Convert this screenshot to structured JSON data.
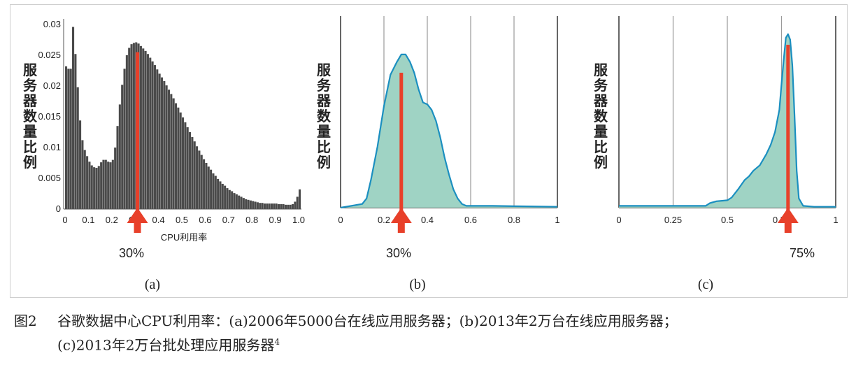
{
  "caption": {
    "figure_number": "图2",
    "line1": "谷歌数据中心CPU利用率：(a)2006年5000台在线应用服务器；(b)2013年2万台在线应用服务器；",
    "line2": "(c)2013年2万台批处理应用服务器",
    "ref": "4"
  },
  "colors": {
    "bar": "#4a4a4a",
    "fill": "#9fd3c4",
    "line": "#1b8fc0",
    "arrow": "#e8402a"
  },
  "chart_data": [
    {
      "type": "bar",
      "panel_label": "(a)",
      "ylabel": "服务器数量比例",
      "xlabel": "CPU利用率",
      "annotation": "30%",
      "arrow_at": 0.31,
      "xlim": [
        0,
        1.0
      ],
      "ylim": [
        0,
        0.03
      ],
      "x_ticks": [
        "0",
        "0.1",
        "0.2",
        "0.3",
        "0.4",
        "0.5",
        "0.6",
        "0.7",
        "0.8",
        "0.9",
        "1.0"
      ],
      "y_ticks": [
        "0",
        "0.005",
        "0.01",
        "0.015",
        "0.02",
        "0.025",
        "0.03"
      ],
      "bin_width": 0.01,
      "values": [
        0.0232,
        0.0228,
        0.0228,
        0.0296,
        0.0252,
        0.0198,
        0.0144,
        0.0112,
        0.0096,
        0.0086,
        0.0077,
        0.0071,
        0.0068,
        0.0067,
        0.007,
        0.0076,
        0.008,
        0.008,
        0.0077,
        0.0076,
        0.008,
        0.01,
        0.0135,
        0.017,
        0.0202,
        0.0228,
        0.025,
        0.0262,
        0.0268,
        0.027,
        0.0271,
        0.0269,
        0.0265,
        0.0261,
        0.0257,
        0.0252,
        0.0246,
        0.024,
        0.0234,
        0.0227,
        0.022,
        0.0214,
        0.0208,
        0.0201,
        0.0194,
        0.0187,
        0.018,
        0.0172,
        0.0165,
        0.0157,
        0.0149,
        0.0141,
        0.0133,
        0.0125,
        0.0117,
        0.011,
        0.0102,
        0.0095,
        0.0088,
        0.0081,
        0.0075,
        0.0069,
        0.0064,
        0.0058,
        0.0054,
        0.0049,
        0.0045,
        0.0041,
        0.0038,
        0.0034,
        0.0031,
        0.0029,
        0.0026,
        0.0024,
        0.0022,
        0.002,
        0.0018,
        0.0016,
        0.0015,
        0.0014,
        0.0013,
        0.0012,
        0.0011,
        0.001,
        0.001,
        0.0009,
        0.0009,
        0.0009,
        0.0009,
        0.0009,
        0.0009,
        0.0008,
        0.0008,
        0.0008,
        0.0007,
        0.0007,
        0.0007,
        0.0008,
        0.0012,
        0.002,
        0.0032
      ]
    },
    {
      "type": "area",
      "panel_label": "(b)",
      "ylabel": "服务器数量比例",
      "annotation": "30%",
      "arrow_at": 0.28,
      "xlim": [
        0,
        1
      ],
      "ylim": [
        0,
        1
      ],
      "x_ticks": [
        "0",
        "0.2",
        "0.4",
        "0.6",
        "0.8",
        "1"
      ],
      "x_tick_values": [
        0,
        0.2,
        0.4,
        0.6,
        0.8,
        1
      ],
      "gridlines_x": [
        0.2,
        0.4,
        0.6,
        0.8
      ],
      "x": [
        0,
        0.1,
        0.12,
        0.14,
        0.17,
        0.2,
        0.23,
        0.26,
        0.28,
        0.3,
        0.32,
        0.34,
        0.36,
        0.38,
        0.4,
        0.42,
        0.44,
        0.46,
        0.48,
        0.5,
        0.52,
        0.54,
        0.56,
        0.58,
        0.6,
        0.7,
        0.8,
        1.0
      ],
      "y": [
        0,
        0.02,
        0.05,
        0.15,
        0.33,
        0.55,
        0.72,
        0.79,
        0.83,
        0.83,
        0.79,
        0.73,
        0.64,
        0.57,
        0.56,
        0.53,
        0.47,
        0.38,
        0.27,
        0.18,
        0.1,
        0.05,
        0.02,
        0.01,
        0.01,
        0.01,
        0.008,
        0.005
      ]
    },
    {
      "type": "area",
      "panel_label": "(c)",
      "ylabel": "服务器数量比例",
      "annotation": "75%",
      "arrow_at": 0.78,
      "xlim": [
        0,
        1
      ],
      "ylim": [
        0,
        1
      ],
      "x_ticks": [
        "0",
        "0.25",
        "0.5",
        "0.75",
        "1"
      ],
      "x_tick_values": [
        0,
        0.25,
        0.5,
        0.75,
        1
      ],
      "gridlines_x": [
        0.25,
        0.5,
        0.75
      ],
      "x": [
        0,
        0.4,
        0.42,
        0.45,
        0.48,
        0.5,
        0.52,
        0.55,
        0.58,
        0.6,
        0.62,
        0.65,
        0.68,
        0.7,
        0.72,
        0.74,
        0.75,
        0.76,
        0.77,
        0.78,
        0.79,
        0.8,
        0.81,
        0.82,
        0.83,
        0.85,
        0.9,
        1.0
      ],
      "y": [
        0.01,
        0.01,
        0.025,
        0.035,
        0.038,
        0.04,
        0.055,
        0.1,
        0.15,
        0.17,
        0.2,
        0.23,
        0.29,
        0.34,
        0.41,
        0.53,
        0.67,
        0.8,
        0.92,
        0.94,
        0.91,
        0.77,
        0.5,
        0.2,
        0.05,
        0.01,
        0.005,
        0.005
      ]
    }
  ]
}
